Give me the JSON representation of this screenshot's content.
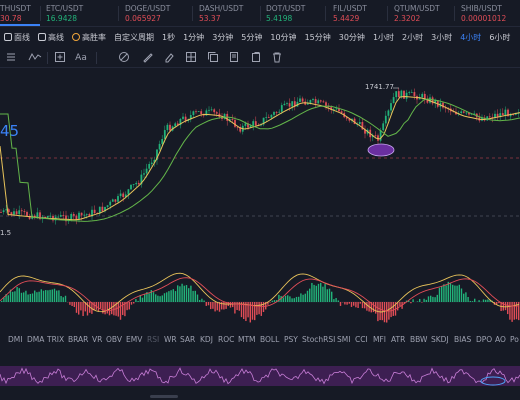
{
  "tickers": [
    {
      "name": "THUSDT",
      "price": "30.78",
      "dir": "down",
      "active": true
    },
    {
      "name": "ETC/USDT",
      "price": "16.9428",
      "dir": "up"
    },
    {
      "name": "DOGE/USDT",
      "price": "0.065927",
      "dir": "down"
    },
    {
      "name": "DASH/USDT",
      "price": "53.37",
      "dir": "down"
    },
    {
      "name": "DOT/USDT",
      "price": "5.4198",
      "dir": "up"
    },
    {
      "name": "FIL/USDT",
      "price": "5.4429",
      "dir": "down"
    },
    {
      "name": "QTUM/USDT",
      "price": "2.3202",
      "dir": "down"
    },
    {
      "name": "SHIB/USDT",
      "price": "0.00001012",
      "dir": "down"
    }
  ],
  "toolbar": {
    "line_mode": "面线",
    "kline_mode": "高线",
    "win_rate": "高胜率",
    "custom_period": "自定义周期",
    "intervals": [
      "1秒",
      "1分钟",
      "3分钟",
      "5分钟",
      "10分钟",
      "15分钟",
      "30分钟",
      "1小时",
      "2小时",
      "3小时",
      "4小时",
      "6小时"
    ],
    "active_interval": "4小时"
  },
  "tools": [
    "menu-icon",
    "wave-icon",
    "add-box-icon",
    "text-icon",
    "magnet-icon",
    "brush-icon",
    "eraser-icon",
    "layout-icon",
    "copy-icon",
    "layers-icon",
    "delete-icon"
  ],
  "text_tool_label": "Aa",
  "chart": {
    "high_label": "1741.77",
    "low_label": "1.5",
    "left_price": "45"
  },
  "indicator_tabs": [
    "DMI",
    "DMA",
    "TRIX",
    "BRAR",
    "VR",
    "OBV",
    "EMV",
    "RSI",
    "WR",
    "SAR",
    "KDJ",
    "ROC",
    "MTM",
    "BOLL",
    "PSY",
    "StochRSI",
    "SMI",
    "CCI",
    "MFI",
    "ATR",
    "BBW",
    "SKDJ",
    "BIAS",
    "DPO",
    "AO",
    "Po"
  ],
  "colors": {
    "bg": "#161a25",
    "up": "#22b37a",
    "down": "#e04d57",
    "accent": "#3b82f6",
    "ma_yellow": "#e8c35a",
    "ma_green": "#63b54a",
    "rsi_purple": "#7b3fb0"
  }
}
